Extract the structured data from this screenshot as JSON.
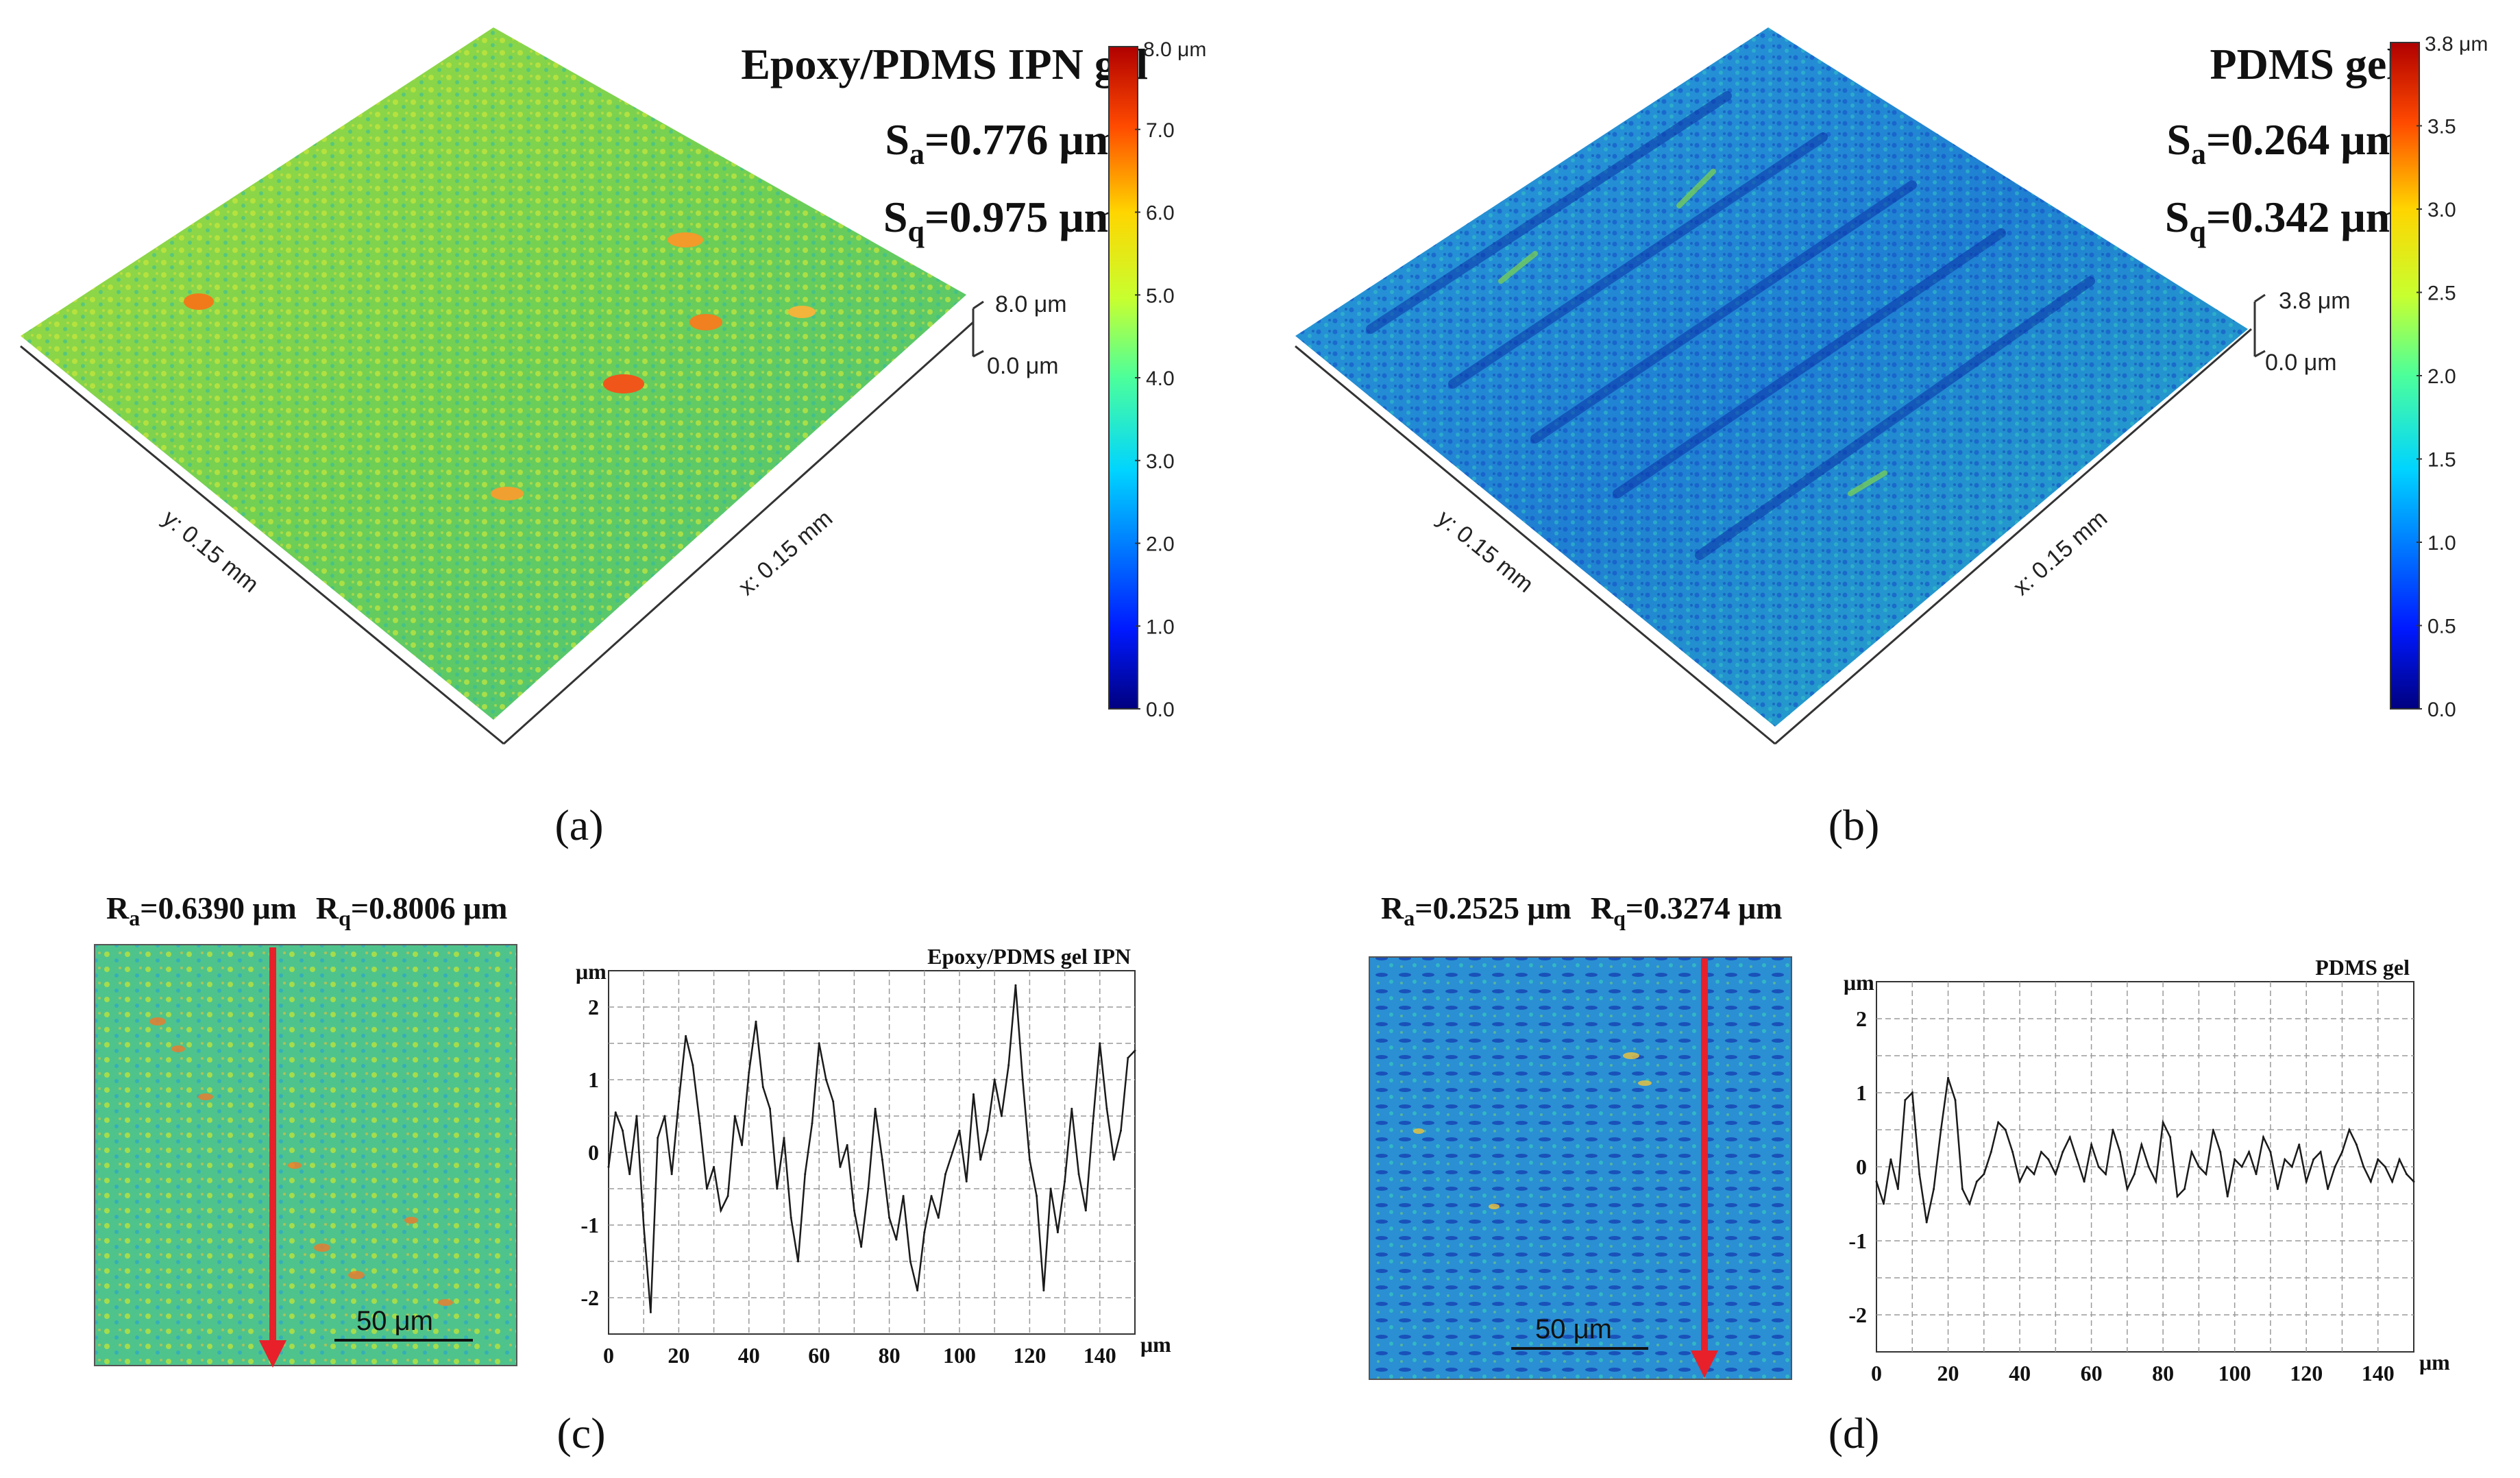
{
  "panels": {
    "a": {
      "label": "(a)",
      "title": "Epoxy/PDMS IPN gel",
      "sa": {
        "sym": "S",
        "sub": "a",
        "val": "=0.776 μm"
      },
      "sq": {
        "sym": "S",
        "sub": "q",
        "val": "=0.975 μm"
      },
      "z_top": "8.0 μm",
      "z_bottom": "0.0 μm",
      "x_axis": "x: 0.15 mm",
      "y_axis": "y: 0.15 mm",
      "colorbar": {
        "max_label": "8.0 μm",
        "ticks": [
          "7.0",
          "6.0",
          "5.0",
          "4.0",
          "3.0",
          "2.0",
          "1.0",
          "0.0"
        ]
      }
    },
    "b": {
      "label": "(b)",
      "title": "PDMS gel",
      "sa": {
        "sym": "S",
        "sub": "a",
        "val": "=0.264 μm"
      },
      "sq": {
        "sym": "S",
        "sub": "q",
        "val": "=0.342 μm"
      },
      "z_top": "3.8 μm",
      "z_bottom": "0.0 μm",
      "x_axis": "x: 0.15 mm",
      "y_axis": "y: 0.15 mm",
      "colorbar": {
        "max_label": "3.8 μm",
        "ticks": [
          "3.5",
          "3.0",
          "2.5",
          "2.0",
          "1.5",
          "1.0",
          "0.5",
          "0.0"
        ]
      }
    },
    "c": {
      "label": "(c)",
      "ra": {
        "sym": "R",
        "sub": "a",
        "val": "=0.6390 μm"
      },
      "rq": {
        "sym": "R",
        "sub": "q",
        "val": "=0.8006 μm"
      },
      "scale_bar": "50 μm"
    },
    "d": {
      "label": "(d)",
      "ra": {
        "sym": "R",
        "sub": "a",
        "val": "=0.2525 μm"
      },
      "rq": {
        "sym": "R",
        "sub": "q",
        "val": "=0.3274 μm"
      },
      "scale_bar": "50 μm"
    }
  },
  "colors": {
    "profile_arrow": "#e8202a",
    "line": "#1a1a1a",
    "grid": "#9a9a9a",
    "surface_ipn": "#8fd14a",
    "surface_pdms": "#2a8fd8"
  },
  "chart_data": [
    {
      "type": "line",
      "panel": "c",
      "title": "Epoxy/PDMS gel IPN",
      "xlabel": "μm",
      "ylabel": "μm",
      "xlim": [
        0,
        150
      ],
      "ylim": [
        -2.5,
        2.5
      ],
      "xticks": [
        "0",
        "20",
        "40",
        "60",
        "80",
        "100",
        "120",
        "140"
      ],
      "yticks": [
        "2",
        "1",
        "0",
        "-1",
        "-2"
      ],
      "x": [
        0,
        2,
        4,
        6,
        8,
        10,
        12,
        14,
        16,
        18,
        20,
        22,
        24,
        26,
        28,
        30,
        32,
        34,
        36,
        38,
        40,
        42,
        44,
        46,
        48,
        50,
        52,
        54,
        56,
        58,
        60,
        62,
        64,
        66,
        68,
        70,
        72,
        74,
        76,
        78,
        80,
        82,
        84,
        86,
        88,
        90,
        92,
        94,
        96,
        98,
        100,
        102,
        104,
        106,
        108,
        110,
        112,
        114,
        116,
        118,
        120,
        122,
        124,
        126,
        128,
        130,
        132,
        134,
        136,
        138,
        140,
        142,
        144,
        146,
        148,
        150
      ],
      "values": [
        -0.2,
        0.55,
        0.3,
        -0.3,
        0.5,
        -1.0,
        -2.2,
        0.2,
        0.5,
        -0.3,
        0.7,
        1.6,
        1.2,
        0.4,
        -0.5,
        -0.2,
        -0.8,
        -0.6,
        0.5,
        0.1,
        1.1,
        1.8,
        0.9,
        0.6,
        -0.5,
        0.2,
        -0.9,
        -1.5,
        -0.3,
        0.4,
        1.5,
        1.0,
        0.7,
        -0.2,
        0.1,
        -0.8,
        -1.3,
        -0.5,
        0.6,
        -0.1,
        -0.9,
        -1.2,
        -0.6,
        -1.5,
        -1.9,
        -1.1,
        -0.6,
        -0.9,
        -0.3,
        0.0,
        0.3,
        -0.4,
        0.8,
        -0.1,
        0.3,
        1.0,
        0.5,
        1.2,
        2.3,
        1.0,
        -0.1,
        -0.6,
        -1.9,
        -0.5,
        -1.1,
        -0.4,
        0.6,
        -0.3,
        -0.8,
        0.4,
        1.5,
        0.6,
        -0.1,
        0.3,
        1.3,
        1.4
      ]
    },
    {
      "type": "line",
      "panel": "d",
      "title": "PDMS gel",
      "xlabel": "μm",
      "ylabel": "μm",
      "xlim": [
        0,
        150
      ],
      "ylim": [
        -2.5,
        2.5
      ],
      "xticks": [
        "0",
        "20",
        "40",
        "60",
        "80",
        "100",
        "120",
        "140"
      ],
      "yticks": [
        "2",
        "1",
        "0",
        "-1",
        "-2"
      ],
      "x": [
        0,
        2,
        4,
        6,
        8,
        10,
        12,
        14,
        16,
        18,
        20,
        22,
        24,
        26,
        28,
        30,
        32,
        34,
        36,
        38,
        40,
        42,
        44,
        46,
        48,
        50,
        52,
        54,
        56,
        58,
        60,
        62,
        64,
        66,
        68,
        70,
        72,
        74,
        76,
        78,
        80,
        82,
        84,
        86,
        88,
        90,
        92,
        94,
        96,
        98,
        100,
        102,
        104,
        106,
        108,
        110,
        112,
        114,
        116,
        118,
        120,
        122,
        124,
        126,
        128,
        130,
        132,
        134,
        136,
        138,
        140,
        142,
        144,
        146,
        148,
        150
      ],
      "values": [
        -0.2,
        -0.5,
        0.1,
        -0.3,
        0.9,
        1.0,
        -0.1,
        -0.75,
        -0.3,
        0.5,
        1.2,
        0.9,
        -0.3,
        -0.5,
        -0.2,
        -0.1,
        0.2,
        0.6,
        0.5,
        0.2,
        -0.2,
        0.0,
        -0.1,
        0.2,
        0.1,
        -0.1,
        0.2,
        0.4,
        0.1,
        -0.2,
        0.3,
        0.0,
        -0.1,
        0.5,
        0.2,
        -0.3,
        -0.1,
        0.3,
        0.0,
        -0.2,
        0.6,
        0.4,
        -0.4,
        -0.3,
        0.2,
        0.0,
        -0.1,
        0.5,
        0.2,
        -0.4,
        0.1,
        0.0,
        0.2,
        -0.1,
        0.4,
        0.2,
        -0.3,
        0.1,
        0.0,
        0.3,
        -0.2,
        0.1,
        0.2,
        -0.3,
        0.0,
        0.2,
        0.5,
        0.3,
        0.0,
        -0.2,
        0.1,
        0.0,
        -0.2,
        0.1,
        -0.1,
        -0.2
      ]
    }
  ]
}
